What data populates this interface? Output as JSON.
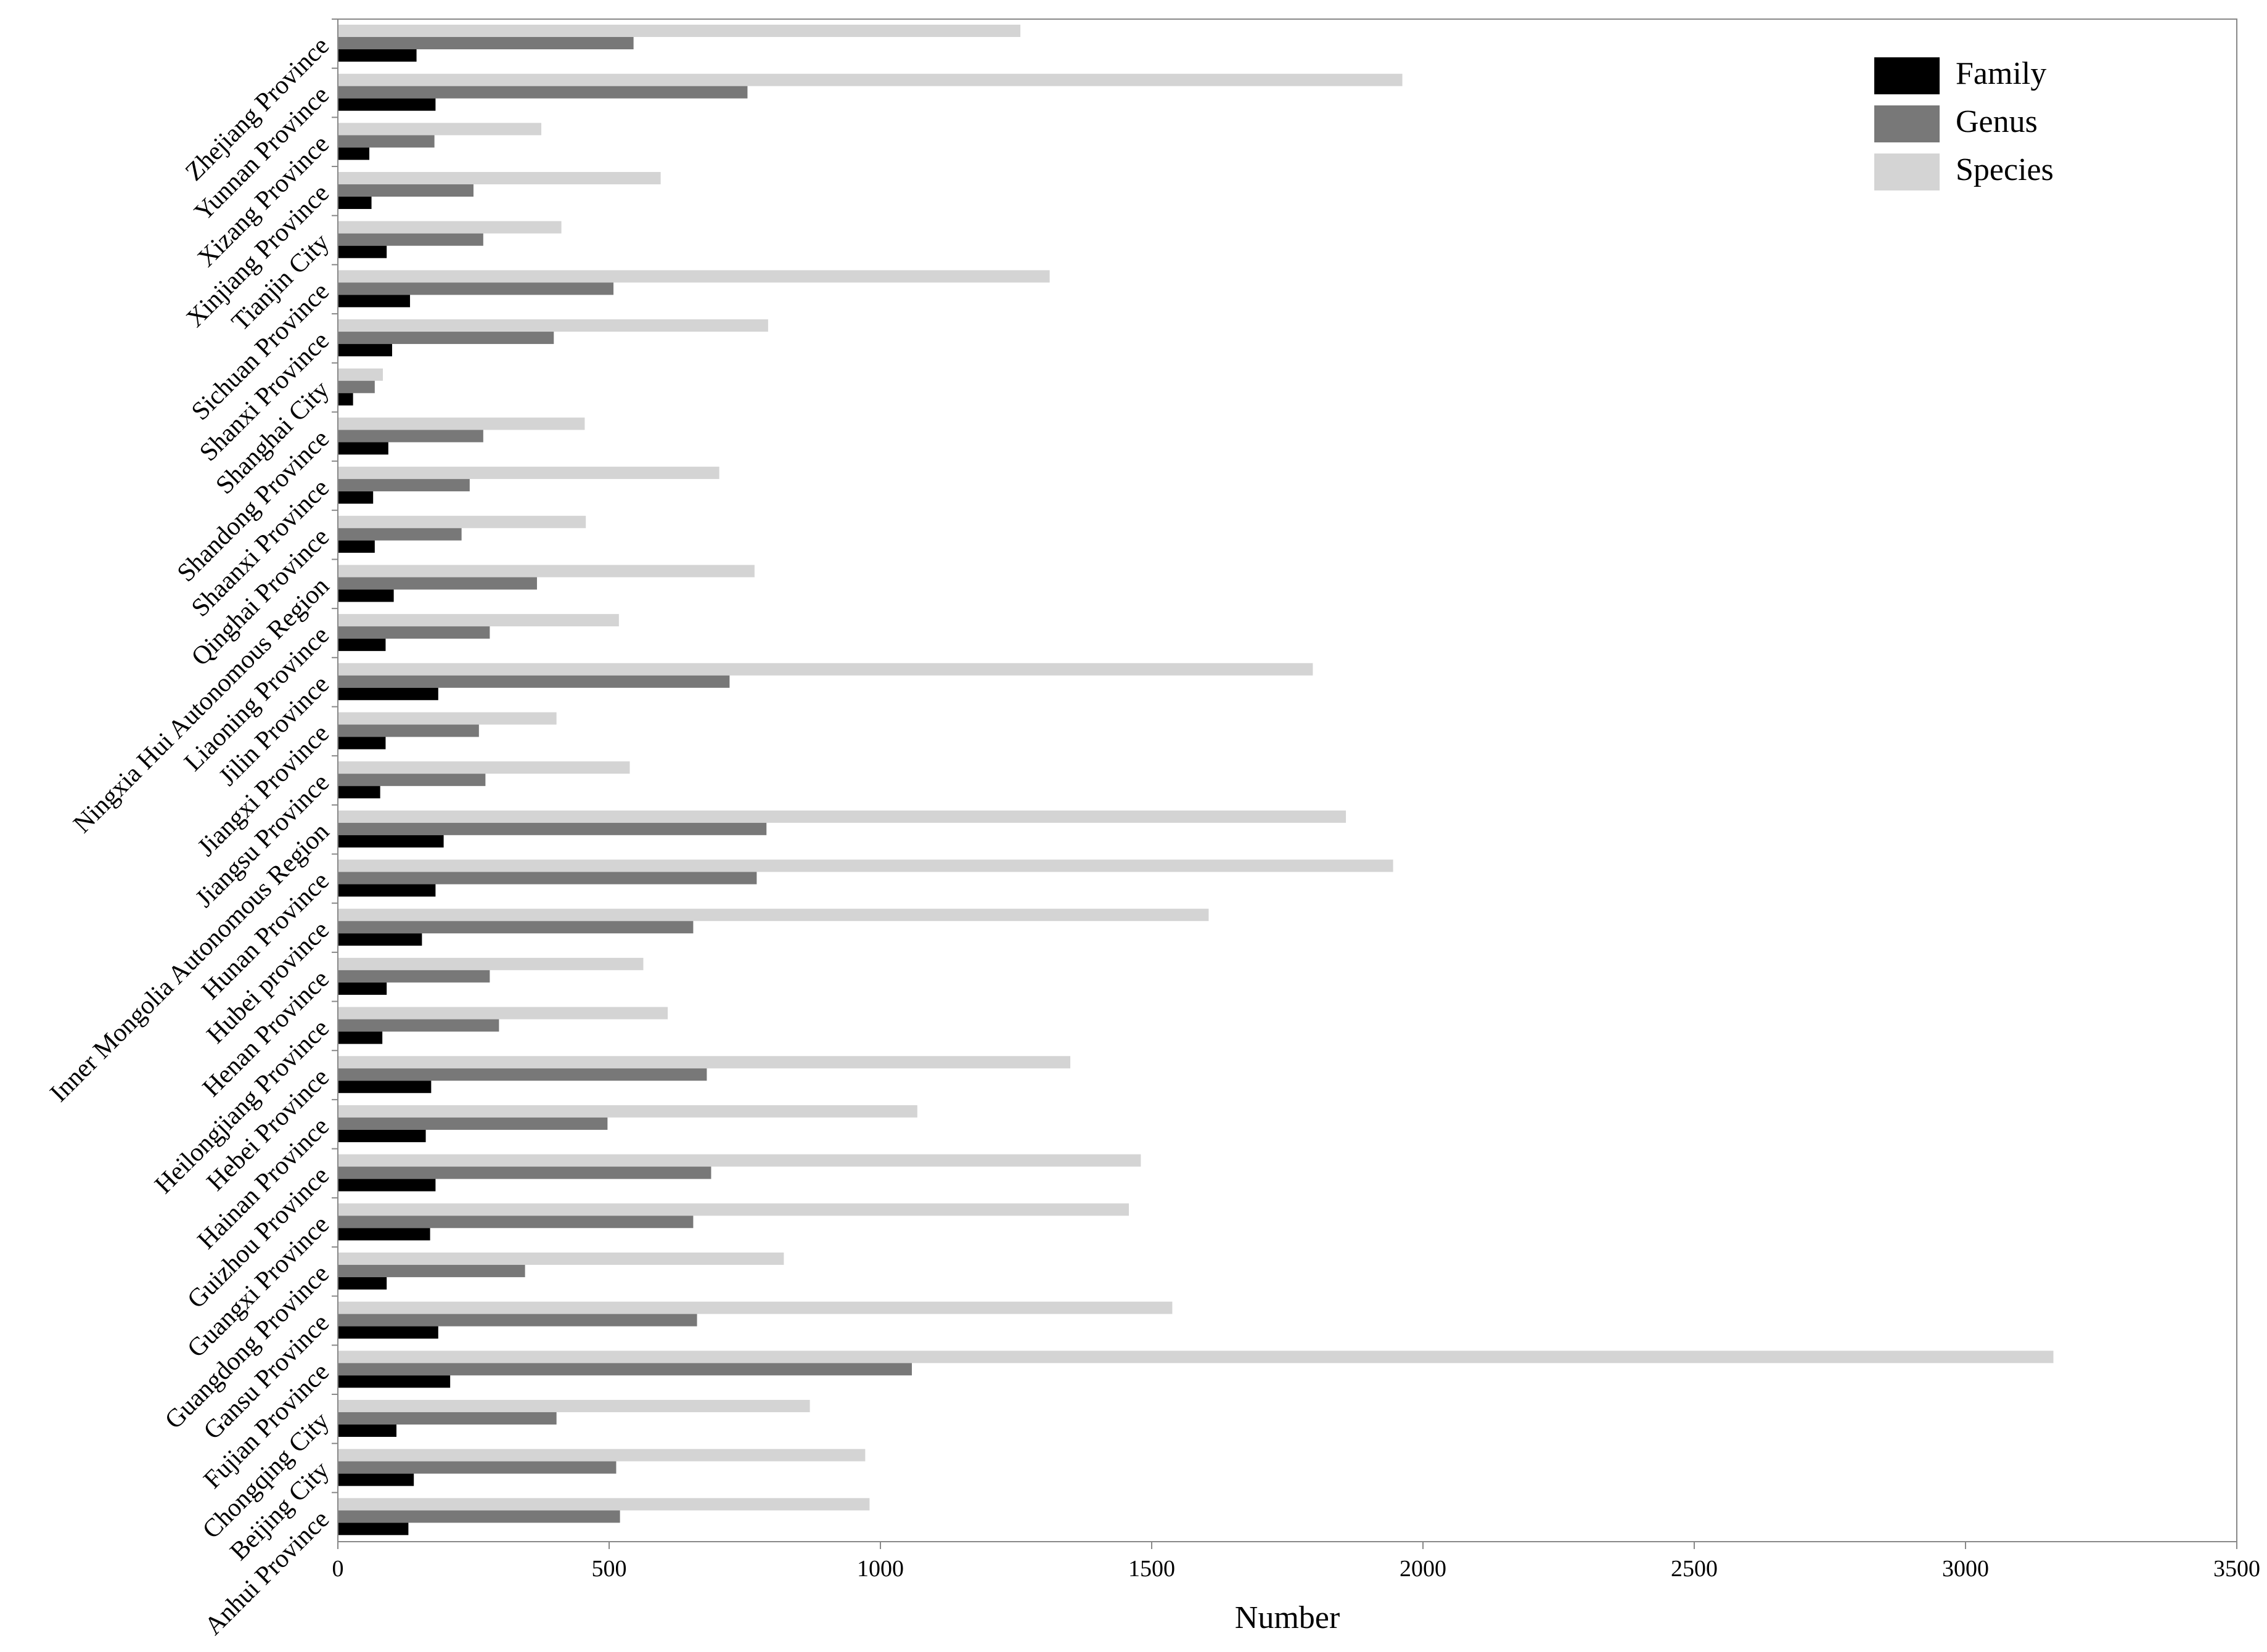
{
  "chart_data": {
    "type": "bar",
    "orientation": "horizontal",
    "categories": [
      "Zhejiang Province",
      "Yunnan Province",
      "Xizang Province",
      "Xinjiang Province",
      "Tianjin City",
      "Sichuan Province",
      "Shanxi Province",
      "Shanghai City",
      "Shandong Province",
      "Shaanxi Province",
      "Qinghai Province",
      "Ningxia Hui Autonomous Region",
      "Liaoning Province",
      "Jilin Province",
      "Jiangxi Province",
      "Jiangsu Province",
      "Inner Mongolia Autonomous Region",
      "Hunan Province",
      "Hubei province",
      "Henan Province",
      "Heilongjiang Province",
      "Hebei Province",
      "Hainan Province",
      "Guizhou Province",
      "Guangxi Province",
      "Guangdong Province",
      "Gansu Province",
      "Fujian Province",
      "Chongqing City",
      "Beijing City",
      "Anhui Province"
    ],
    "series": [
      {
        "name": "Family",
        "color": "#000000",
        "values": [
          145,
          180,
          58,
          62,
          90,
          133,
          100,
          28,
          93,
          65,
          68,
          103,
          88,
          185,
          88,
          78,
          195,
          180,
          155,
          90,
          82,
          172,
          162,
          180,
          170,
          90,
          185,
          207,
          108,
          140,
          130
        ]
      },
      {
        "name": "Genus",
        "color": "#787878",
        "values": [
          545,
          755,
          178,
          250,
          268,
          508,
          398,
          68,
          268,
          243,
          228,
          367,
          280,
          722,
          260,
          272,
          790,
          772,
          655,
          280,
          297,
          680,
          497,
          688,
          655,
          345,
          662,
          1058,
          403,
          513,
          520
        ]
      },
      {
        "name": "Species",
        "color": "#d4d4d4",
        "values": [
          1258,
          1962,
          375,
          595,
          412,
          1312,
          793,
          83,
          455,
          703,
          457,
          768,
          518,
          1797,
          403,
          538,
          1858,
          1945,
          1605,
          563,
          608,
          1350,
          1068,
          1480,
          1458,
          822,
          1538,
          3162,
          870,
          972,
          980
        ]
      }
    ],
    "xlabel": "Number",
    "ylabel": "",
    "title": "",
    "xlim": [
      0,
      3500
    ],
    "xticks": [
      0,
      500,
      1000,
      1500,
      2000,
      2500,
      3000,
      3500
    ],
    "grid": false,
    "legend_position": "top-right"
  }
}
